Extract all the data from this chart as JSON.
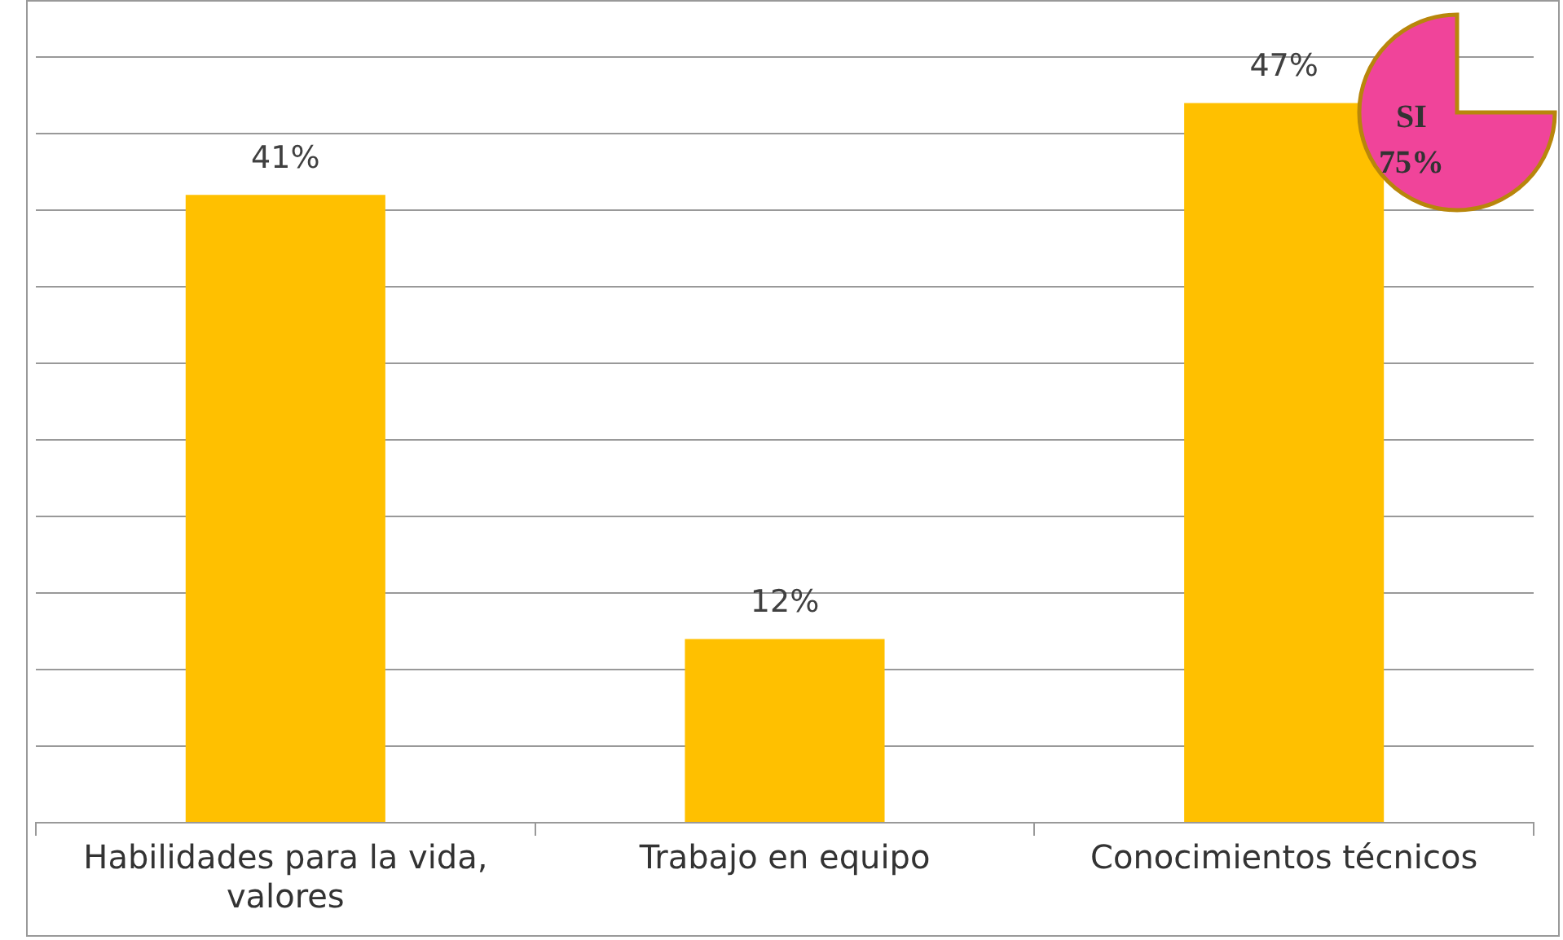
{
  "chart_data": {
    "type": "bar",
    "categories": [
      "Habilidades para la vida, valores",
      "Trabajo en equipo",
      "Conocimientos técnicos"
    ],
    "values": [
      41,
      12,
      47
    ],
    "color": "#ffc000",
    "ylim": [
      0,
      50
    ],
    "yticks": [
      {
        "value": 0,
        "label": null
      },
      {
        "value": 5,
        "label": null
      },
      {
        "value": 10,
        "label": null
      },
      {
        "value": 15,
        "label": null
      },
      {
        "value": 20,
        "label": null
      },
      {
        "value": 25,
        "label": null
      },
      {
        "value": 30,
        "label": null
      },
      {
        "value": 35,
        "label": null
      },
      {
        "value": 40,
        "label": null
      },
      {
        "value": 45,
        "label": null
      },
      {
        "value": 50,
        "label": null
      }
    ],
    "tick_labels": "x",
    "grid": "y",
    "data_labels": true,
    "value_labels": [
      "41%",
      "12%",
      "47%"
    ],
    "annotations": [
      "SI 75%"
    ]
  }
}
